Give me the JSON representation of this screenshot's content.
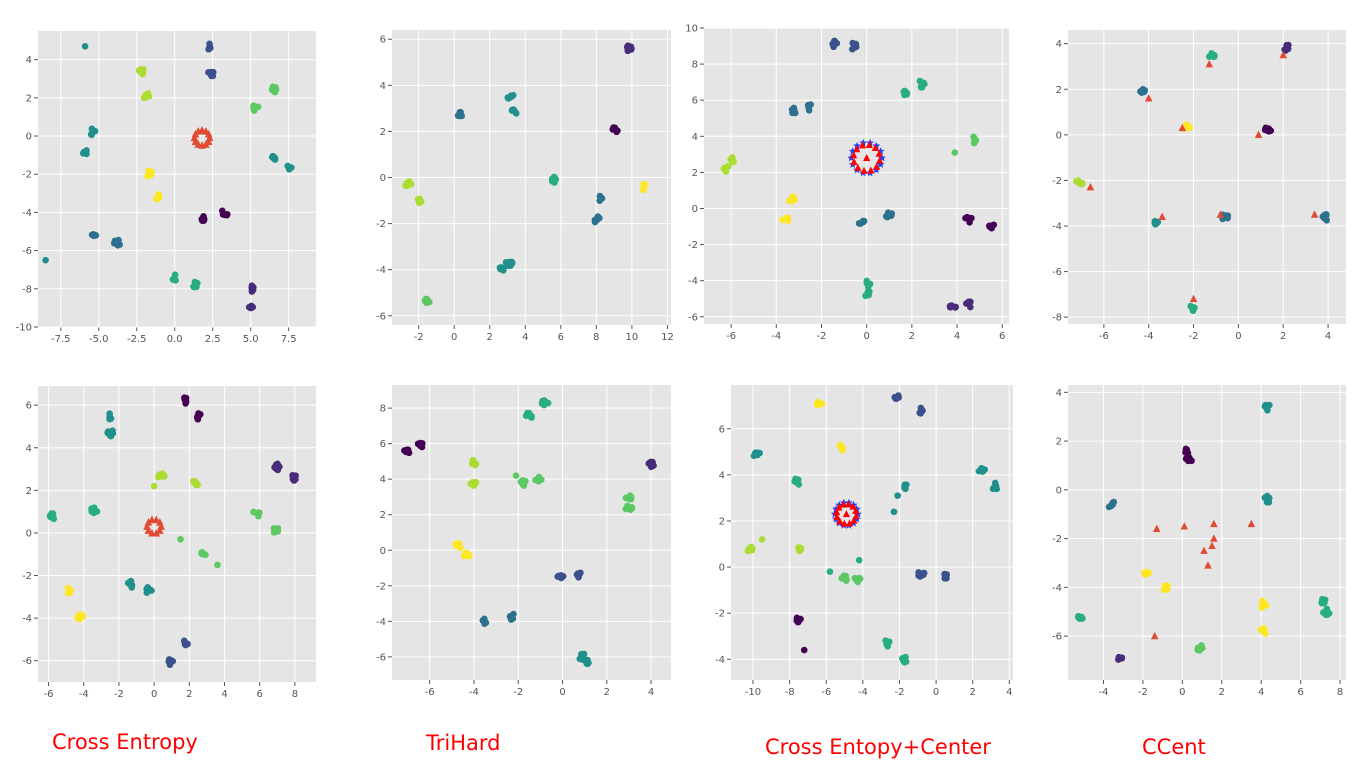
{
  "labels": [
    "Cross Entropy",
    "TriHard",
    "Cross Entopy+Center",
    "CCent"
  ],
  "palette": [
    "#440154",
    "#472c7a",
    "#3b518b",
    "#2c718e",
    "#21908d",
    "#27ad81",
    "#5cc863",
    "#aadc32",
    "#fde725"
  ],
  "center_colors": {
    "triangle": "#e24a33",
    "star": "#1f3fff",
    "triangle_bright": "#ff0000"
  },
  "chart_data": [
    {
      "type": "scatter",
      "title": "",
      "xlabel": "",
      "ylabel": "",
      "grid": true,
      "legend": "none",
      "xlim": [
        -9,
        9.3
      ],
      "ylim": [
        -10,
        5.5
      ],
      "xticks": [
        "-7.5",
        "-5.0",
        "-2.5",
        "0.0",
        "2.5",
        "5.0",
        "7.5"
      ],
      "yticks": [
        "-10",
        "-8",
        "-6",
        "-4",
        "-2",
        "0",
        "2",
        "4"
      ],
      "clusters": [
        {
          "c": 2,
          "x": 2.3,
          "y": 4.7
        },
        {
          "c": 2,
          "x": 2.4,
          "y": 3.3
        },
        {
          "c": 7,
          "x": -2.2,
          "y": 3.4
        },
        {
          "c": 7,
          "x": -1.9,
          "y": 2.1
        },
        {
          "c": 6,
          "x": 6.5,
          "y": 2.4
        },
        {
          "c": 6,
          "x": 5.3,
          "y": 1.5
        },
        {
          "c": 4,
          "x": -5.4,
          "y": 0.2
        },
        {
          "c": 4,
          "x": -5.9,
          "y": -0.8
        },
        {
          "c": 4,
          "x": 6.6,
          "y": -1.2
        },
        {
          "c": 4,
          "x": 7.6,
          "y": -1.6
        },
        {
          "c": 8,
          "x": -1.7,
          "y": -2.0
        },
        {
          "c": 8,
          "x": -1.2,
          "y": -3.2
        },
        {
          "c": 0,
          "x": 1.9,
          "y": -4.3
        },
        {
          "c": 0,
          "x": 3.3,
          "y": -4.0
        },
        {
          "c": 3,
          "x": -5.4,
          "y": -5.2
        },
        {
          "c": 3,
          "x": -3.8,
          "y": -5.6
        },
        {
          "c": 5,
          "x": 0.0,
          "y": -7.4
        },
        {
          "c": 5,
          "x": 1.4,
          "y": -7.8
        },
        {
          "c": 1,
          "x": 5.0,
          "y": -8.0
        },
        {
          "c": 1,
          "x": 5.0,
          "y": -9.0
        }
      ],
      "singles": [
        {
          "c": 4,
          "x": -5.9,
          "y": 4.7
        },
        {
          "c": 4,
          "x": -8.5,
          "y": -6.5
        }
      ],
      "centers": {
        "shape": "triangle",
        "x": 1.8,
        "y": -0.1,
        "r": 0.5,
        "n": 12,
        "color": "triangle"
      }
    },
    {
      "type": "scatter",
      "title": "",
      "xlabel": "",
      "ylabel": "",
      "grid": true,
      "legend": "none",
      "xlim": [
        -3.5,
        12.2
      ],
      "ylim": [
        -6.4,
        6.4
      ],
      "xticks": [
        "-2",
        "0",
        "2",
        "4",
        "6",
        "8",
        "10",
        "12"
      ],
      "yticks": [
        "-6",
        "-4",
        "-2",
        "0",
        "2",
        "4",
        "6"
      ],
      "clusters": [
        {
          "c": 1,
          "x": 9.8,
          "y": 5.6
        },
        {
          "c": 3,
          "x": 0.4,
          "y": 2.7
        },
        {
          "c": 4,
          "x": 3.2,
          "y": 3.5
        },
        {
          "c": 4,
          "x": 3.4,
          "y": 2.9
        },
        {
          "c": 0,
          "x": 9.1,
          "y": 2.1
        },
        {
          "c": 7,
          "x": -2.6,
          "y": -0.3
        },
        {
          "c": 7,
          "x": -1.9,
          "y": -1.0
        },
        {
          "c": 5,
          "x": 5.6,
          "y": -0.1
        },
        {
          "c": 8,
          "x": 10.7,
          "y": -0.4
        },
        {
          "c": 3,
          "x": 8.2,
          "y": -0.9
        },
        {
          "c": 3,
          "x": 8.0,
          "y": -1.8
        },
        {
          "c": 4,
          "x": 2.6,
          "y": -4.0
        },
        {
          "c": 4,
          "x": 3.1,
          "y": -3.7
        },
        {
          "c": 6,
          "x": -1.5,
          "y": -5.4
        }
      ],
      "singles": [],
      "centers": null
    },
    {
      "type": "scatter",
      "title": "",
      "xlabel": "",
      "ylabel": "",
      "grid": true,
      "legend": "none",
      "xlim": [
        -7.2,
        6.3
      ],
      "ylim": [
        -6.4,
        10.0
      ],
      "xticks": [
        "-6",
        "-4",
        "-2",
        "0",
        "2",
        "4",
        "6"
      ],
      "yticks": [
        "-6",
        "-4",
        "-2",
        "0",
        "2",
        "4",
        "6",
        "8",
        "10"
      ],
      "clusters": [
        {
          "c": 2,
          "x": -1.4,
          "y": 9.1
        },
        {
          "c": 2,
          "x": -0.6,
          "y": 9.0
        },
        {
          "c": 3,
          "x": -3.2,
          "y": 5.4
        },
        {
          "c": 3,
          "x": -2.5,
          "y": 5.6
        },
        {
          "c": 5,
          "x": 1.7,
          "y": 6.4
        },
        {
          "c": 5,
          "x": 2.4,
          "y": 6.9
        },
        {
          "c": 7,
          "x": -6.2,
          "y": 2.2
        },
        {
          "c": 7,
          "x": -5.9,
          "y": 2.7
        },
        {
          "c": 6,
          "x": 4.7,
          "y": 3.8
        },
        {
          "c": 8,
          "x": -3.3,
          "y": 0.5
        },
        {
          "c": 8,
          "x": -3.6,
          "y": -0.6
        },
        {
          "c": 3,
          "x": -0.2,
          "y": -0.8
        },
        {
          "c": 3,
          "x": 1.0,
          "y": -0.4
        },
        {
          "c": 0,
          "x": 4.5,
          "y": -0.6
        },
        {
          "c": 0,
          "x": 5.5,
          "y": -0.9
        },
        {
          "c": 5,
          "x": 0.0,
          "y": -4.2
        },
        {
          "c": 5,
          "x": 0.0,
          "y": -4.7
        },
        {
          "c": 1,
          "x": 3.8,
          "y": -5.5
        },
        {
          "c": 1,
          "x": 4.5,
          "y": -5.3
        }
      ],
      "singles": [
        {
          "c": 6,
          "x": 3.9,
          "y": 3.1
        }
      ],
      "centers": {
        "shape": "star_triangle",
        "x": 0.0,
        "y": 2.8,
        "r": 0.65,
        "n": 12,
        "color": "triangle_bright"
      }
    },
    {
      "type": "scatter",
      "title": "",
      "xlabel": "",
      "ylabel": "",
      "grid": true,
      "legend": "none",
      "xlim": [
        -7.6,
        4.8
      ],
      "ylim": [
        -8.3,
        4.6
      ],
      "xticks": [
        "-6",
        "-4",
        "-2",
        "0",
        "2",
        "4"
      ],
      "yticks": [
        "-8",
        "-6",
        "-4",
        "-2",
        "0",
        "2",
        "4"
      ],
      "clusters": [
        {
          "c": 1,
          "x": 2.2,
          "y": 3.8
        },
        {
          "c": 5,
          "x": -1.2,
          "y": 3.5
        },
        {
          "c": 3,
          "x": -4.3,
          "y": 1.9
        },
        {
          "c": 8,
          "x": -2.3,
          "y": 0.3
        },
        {
          "c": 0,
          "x": 1.3,
          "y": 0.2
        },
        {
          "c": 7,
          "x": -7.1,
          "y": -2.1
        },
        {
          "c": 4,
          "x": -3.7,
          "y": -3.8
        },
        {
          "c": 3,
          "x": -0.6,
          "y": -3.6
        },
        {
          "c": 3,
          "x": 3.9,
          "y": -3.6
        },
        {
          "c": 5,
          "x": -2.0,
          "y": -7.6
        }
      ],
      "singles": [],
      "centers": {
        "shape": "points",
        "color": "triangle",
        "points": [
          [
            -1.3,
            3.1
          ],
          [
            2.0,
            3.5
          ],
          [
            -4.0,
            1.6
          ],
          [
            -2.5,
            0.3
          ],
          [
            0.9,
            0.0
          ],
          [
            -6.6,
            -2.3
          ],
          [
            -3.4,
            -3.6
          ],
          [
            -0.8,
            -3.5
          ],
          [
            3.4,
            -3.5
          ],
          [
            -2.0,
            -7.2
          ]
        ]
      }
    },
    {
      "type": "scatter",
      "title": "",
      "xlabel": "",
      "ylabel": "",
      "grid": true,
      "legend": "none",
      "xlim": [
        -6.6,
        9.2
      ],
      "ylim": [
        -7.0,
        6.9
      ],
      "xticks": [
        "-6",
        "-4",
        "-2",
        "0",
        "2",
        "4",
        "6",
        "8"
      ],
      "yticks": [
        "-6",
        "-4",
        "-2",
        "0",
        "2",
        "4",
        "6"
      ],
      "clusters": [
        {
          "c": 0,
          "x": 1.8,
          "y": 6.2
        },
        {
          "c": 0,
          "x": 2.5,
          "y": 5.5
        },
        {
          "c": 4,
          "x": -2.5,
          "y": 5.5
        },
        {
          "c": 4,
          "x": -2.5,
          "y": 4.7
        },
        {
          "c": 7,
          "x": 2.3,
          "y": 2.3
        },
        {
          "c": 7,
          "x": 0.4,
          "y": 2.7
        },
        {
          "c": 1,
          "x": 7.0,
          "y": 3.1
        },
        {
          "c": 1,
          "x": 8.0,
          "y": 2.6
        },
        {
          "c": 5,
          "x": -5.8,
          "y": 0.8
        },
        {
          "c": 5,
          "x": -3.4,
          "y": 1.1
        },
        {
          "c": 6,
          "x": 5.8,
          "y": 0.9
        },
        {
          "c": 6,
          "x": 6.9,
          "y": 0.1
        },
        {
          "c": 6,
          "x": 2.8,
          "y": -1.0
        },
        {
          "c": 4,
          "x": -1.3,
          "y": -2.4
        },
        {
          "c": 4,
          "x": -0.3,
          "y": -2.7
        },
        {
          "c": 8,
          "x": -4.8,
          "y": -2.7
        },
        {
          "c": 8,
          "x": -4.2,
          "y": -3.9
        },
        {
          "c": 2,
          "x": 1.8,
          "y": -5.2
        },
        {
          "c": 2,
          "x": 0.9,
          "y": -6.1
        }
      ],
      "singles": [
        {
          "c": 6,
          "x": 1.5,
          "y": -0.3
        },
        {
          "c": 6,
          "x": 3.6,
          "y": -1.5
        },
        {
          "c": 7,
          "x": 0.0,
          "y": 2.2
        }
      ],
      "centers": {
        "shape": "triangle",
        "x": 0.0,
        "y": 0.3,
        "r": 0.4,
        "n": 10,
        "color": "triangle"
      }
    },
    {
      "type": "scatter",
      "title": "",
      "xlabel": "",
      "ylabel": "",
      "grid": true,
      "legend": "none",
      "xlim": [
        -7.7,
        4.9
      ],
      "ylim": [
        -7.3,
        9.3
      ],
      "xticks": [
        "-6",
        "-4",
        "-2",
        "0",
        "2",
        "4"
      ],
      "yticks": [
        "-6",
        "-4",
        "-2",
        "0",
        "2",
        "4",
        "6",
        "8"
      ],
      "clusters": [
        {
          "c": 0,
          "x": -7.0,
          "y": 5.6
        },
        {
          "c": 0,
          "x": -6.4,
          "y": 5.9
        },
        {
          "c": 5,
          "x": -1.5,
          "y": 7.6
        },
        {
          "c": 5,
          "x": -0.8,
          "y": 8.3
        },
        {
          "c": 7,
          "x": -4.0,
          "y": 4.9
        },
        {
          "c": 7,
          "x": -4.0,
          "y": 3.7
        },
        {
          "c": 6,
          "x": -1.8,
          "y": 3.8
        },
        {
          "c": 6,
          "x": -1.1,
          "y": 4.0
        },
        {
          "c": 1,
          "x": 4.0,
          "y": 4.8
        },
        {
          "c": 6,
          "x": 3.0,
          "y": 2.9
        },
        {
          "c": 6,
          "x": 3.0,
          "y": 2.4
        },
        {
          "c": 8,
          "x": -4.7,
          "y": 0.3
        },
        {
          "c": 8,
          "x": -4.3,
          "y": -0.3
        },
        {
          "c": 2,
          "x": -0.1,
          "y": -1.5
        },
        {
          "c": 2,
          "x": 0.8,
          "y": -1.4
        },
        {
          "c": 3,
          "x": -3.5,
          "y": -4.0
        },
        {
          "c": 3,
          "x": -2.3,
          "y": -3.7
        },
        {
          "c": 4,
          "x": 0.9,
          "y": -6.0
        },
        {
          "c": 4,
          "x": 1.1,
          "y": -6.3
        }
      ],
      "singles": [
        {
          "c": 6,
          "x": -2.1,
          "y": 4.2
        }
      ],
      "centers": null
    },
    {
      "type": "scatter",
      "title": "",
      "xlabel": "",
      "ylabel": "",
      "grid": true,
      "legend": "none",
      "xlim": [
        -11.2,
        4.2
      ],
      "ylim": [
        -4.9,
        7.9
      ],
      "xticks": [
        "-10",
        "-8",
        "-6",
        "-4",
        "-2",
        "0",
        "2",
        "4"
      ],
      "yticks": [
        "-4",
        "-2",
        "0",
        "2",
        "4",
        "6"
      ],
      "clusters": [
        {
          "c": 8,
          "x": -6.4,
          "y": 7.1
        },
        {
          "c": 2,
          "x": -2.1,
          "y": 7.3
        },
        {
          "c": 2,
          "x": -0.9,
          "y": 6.8
        },
        {
          "c": 4,
          "x": -9.8,
          "y": 4.9
        },
        {
          "c": 8,
          "x": -5.2,
          "y": 5.2
        },
        {
          "c": 4,
          "x": 2.5,
          "y": 4.2
        },
        {
          "c": 5,
          "x": -7.6,
          "y": 3.7
        },
        {
          "c": 4,
          "x": -1.7,
          "y": 3.5
        },
        {
          "c": 4,
          "x": 3.2,
          "y": 3.5
        },
        {
          "c": 7,
          "x": -10.2,
          "y": 0.8
        },
        {
          "c": 7,
          "x": -7.5,
          "y": 0.8
        },
        {
          "c": 2,
          "x": -0.8,
          "y": -0.3
        },
        {
          "c": 2,
          "x": 0.6,
          "y": -0.4
        },
        {
          "c": 6,
          "x": -5.0,
          "y": -0.5
        },
        {
          "c": 6,
          "x": -4.3,
          "y": -0.5
        },
        {
          "c": 0,
          "x": -7.5,
          "y": -2.3
        },
        {
          "c": 5,
          "x": -2.7,
          "y": -3.3
        },
        {
          "c": 5,
          "x": -1.7,
          "y": -4.0
        }
      ],
      "singles": [
        {
          "c": 0,
          "x": -7.2,
          "y": -3.6
        },
        {
          "c": 4,
          "x": -2.3,
          "y": 2.4
        },
        {
          "c": 4,
          "x": -2.1,
          "y": 3.1
        },
        {
          "c": 5,
          "x": -4.2,
          "y": 0.3
        },
        {
          "c": 5,
          "x": -5.8,
          "y": -0.2
        },
        {
          "c": 7,
          "x": -9.5,
          "y": 1.2
        }
      ],
      "centers": {
        "shape": "star_triangle",
        "x": -4.9,
        "y": 2.3,
        "r": 0.6,
        "n": 12,
        "color": "triangle_bright"
      }
    },
    {
      "type": "scatter",
      "title": "",
      "xlabel": "",
      "ylabel": "",
      "grid": true,
      "legend": "none",
      "xlim": [
        -5.8,
        8.3
      ],
      "ylim": [
        -7.8,
        4.3
      ],
      "xticks": [
        "-4",
        "-2",
        "0",
        "2",
        "4",
        "6",
        "8"
      ],
      "yticks": [
        "-6",
        "-4",
        "-2",
        "0",
        "2",
        "4"
      ],
      "clusters": [
        {
          "c": 4,
          "x": 4.3,
          "y": 3.4
        },
        {
          "c": 0,
          "x": 0.2,
          "y": 1.6
        },
        {
          "c": 0,
          "x": 0.3,
          "y": 1.2
        },
        {
          "c": 3,
          "x": -3.6,
          "y": -0.6
        },
        {
          "c": 4,
          "x": 4.3,
          "y": -0.4
        },
        {
          "c": 8,
          "x": -1.8,
          "y": -3.4
        },
        {
          "c": 8,
          "x": -0.9,
          "y": -4.0
        },
        {
          "c": 6,
          "x": 0.9,
          "y": -6.5
        },
        {
          "c": 5,
          "x": -5.2,
          "y": -5.3
        },
        {
          "c": 5,
          "x": 7.2,
          "y": -4.6
        },
        {
          "c": 5,
          "x": 7.3,
          "y": -5.0
        },
        {
          "c": 8,
          "x": 4.1,
          "y": -4.7
        },
        {
          "c": 8,
          "x": 4.1,
          "y": -5.8
        },
        {
          "c": 1,
          "x": -3.1,
          "y": -6.9
        }
      ],
      "singles": [],
      "centers": {
        "shape": "points",
        "color": "triangle",
        "points": [
          [
            -1.3,
            -1.6
          ],
          [
            0.1,
            -1.5
          ],
          [
            1.1,
            -2.5
          ],
          [
            1.3,
            -3.1
          ],
          [
            1.5,
            -2.3
          ],
          [
            1.6,
            -1.4
          ],
          [
            1.6,
            -2.0
          ],
          [
            3.5,
            -1.4
          ],
          [
            -1.4,
            -6.0
          ]
        ]
      }
    }
  ]
}
